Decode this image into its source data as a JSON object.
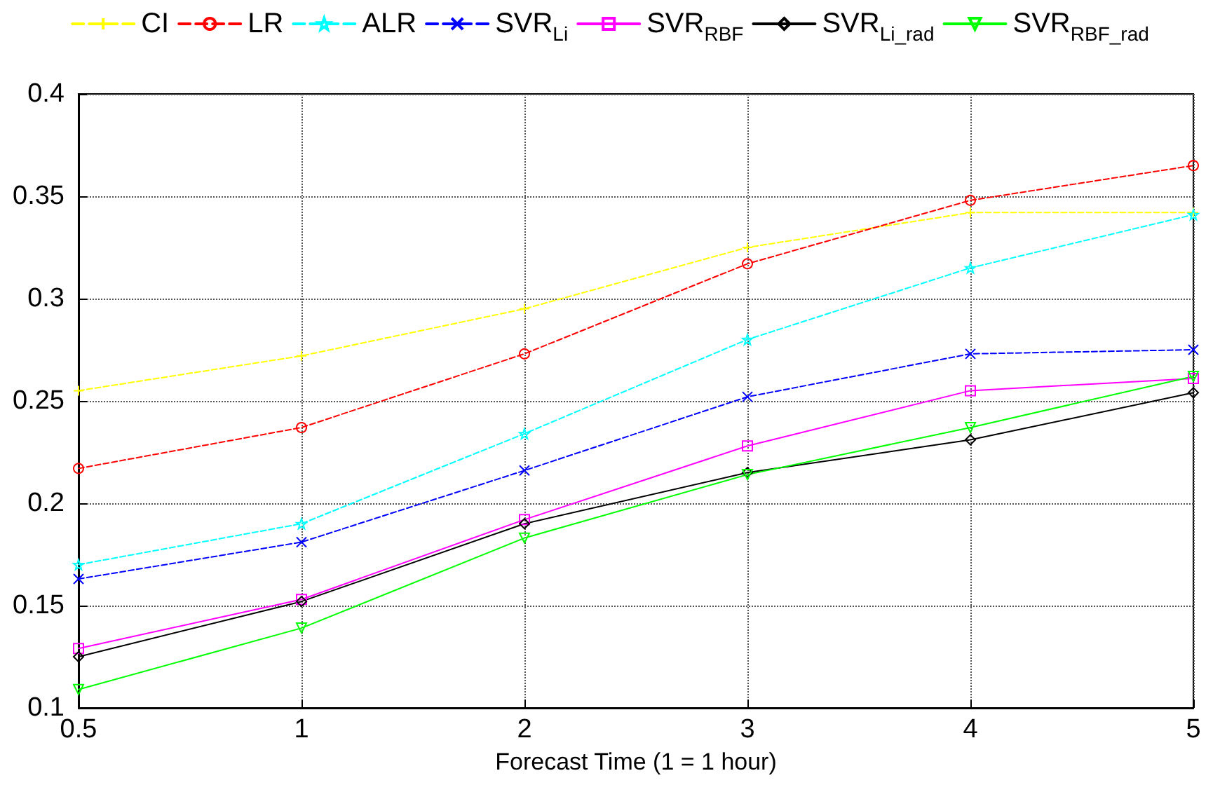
{
  "chart_data": {
    "type": "line",
    "xlabel": "Forecast Time (1 = 1 hour)",
    "categories": [
      "0.5",
      "1",
      "2",
      "3",
      "4",
      "5"
    ],
    "series": [
      {
        "name": "CI",
        "color": "#ffff00",
        "marker": "plus",
        "line_style": "dashed",
        "values": [
          0.255,
          0.272,
          0.295,
          0.325,
          0.342,
          0.342
        ]
      },
      {
        "name": "LR",
        "color": "#ff0000",
        "marker": "circle",
        "line_style": "dashed",
        "values": [
          0.217,
          0.237,
          0.273,
          0.317,
          0.348,
          0.365
        ]
      },
      {
        "name": "ALR",
        "color": "#00ffff",
        "marker": "star",
        "line_style": "dashed",
        "values": [
          0.17,
          0.19,
          0.234,
          0.28,
          0.315,
          0.341
        ]
      },
      {
        "name": "SVR$_{Li}$",
        "color": "#0000ff",
        "marker": "cross",
        "line_style": "dashed",
        "values": [
          0.163,
          0.181,
          0.216,
          0.252,
          0.273,
          0.275
        ]
      },
      {
        "name": "SVR$_{RBF}$",
        "color": "#ff00ff",
        "marker": "square",
        "line_style": "solid",
        "values": [
          0.129,
          0.153,
          0.192,
          0.228,
          0.255,
          0.261
        ]
      },
      {
        "name": "SVR$_{Li_rad}$",
        "color": "#000000",
        "marker": "diamond",
        "line_style": "solid",
        "values": [
          0.125,
          0.152,
          0.19,
          0.215,
          0.231,
          0.254
        ]
      },
      {
        "name": "SVR$_{RBF_rad}$",
        "color": "#00ff00",
        "marker": "triangle",
        "line_style": "solid",
        "values": [
          0.109,
          0.139,
          0.183,
          0.214,
          0.237,
          0.262
        ]
      }
    ],
    "ylim": [
      0.1,
      0.4
    ],
    "yticks": [
      0.1,
      0.15,
      0.2,
      0.25,
      0.3,
      0.35,
      0.4
    ],
    "grid": true,
    "legend": "top"
  }
}
